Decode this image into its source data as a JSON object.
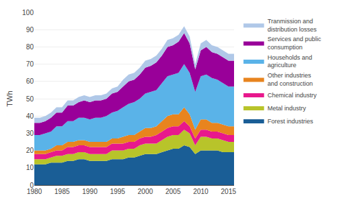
{
  "chart_data": {
    "type": "area",
    "stacked": true,
    "ylabel": "TWh",
    "x": [
      1980,
      1981,
      1982,
      1983,
      1984,
      1985,
      1986,
      1987,
      1988,
      1989,
      1990,
      1991,
      1992,
      1993,
      1994,
      1995,
      1996,
      1997,
      1998,
      1999,
      2000,
      2001,
      2002,
      2003,
      2004,
      2005,
      2006,
      2007,
      2008,
      2009,
      2010,
      2011,
      2012,
      2013,
      2014,
      2015,
      2016
    ],
    "series": [
      {
        "name": "Forest industries",
        "color": "#1a5e96",
        "values": [
          12,
          12,
          12,
          13,
          13,
          13,
          14,
          14,
          15,
          15,
          14,
          14,
          14,
          14,
          15,
          15,
          15,
          16,
          16,
          17,
          18,
          18,
          18,
          19,
          20,
          21,
          21,
          23,
          22,
          18,
          20,
          20,
          20,
          20,
          19,
          19,
          19
        ]
      },
      {
        "name": "Metal industry",
        "color": "#b8c42a",
        "values": [
          3,
          3,
          3,
          3,
          4,
          4,
          4,
          4,
          4,
          4,
          4,
          4,
          4,
          4,
          5,
          5,
          5,
          5,
          5,
          6,
          6,
          6,
          6,
          7,
          8,
          8,
          8,
          9,
          8,
          5,
          8,
          8,
          7,
          7,
          7,
          6,
          6
        ]
      },
      {
        "name": "Chemical industry",
        "color": "#e8188c",
        "values": [
          3,
          3,
          3,
          3,
          3,
          3,
          4,
          4,
          4,
          4,
          4,
          4,
          4,
          4,
          4,
          4,
          4,
          4,
          4,
          4,
          4,
          4,
          5,
          5,
          5,
          5,
          5,
          5,
          4,
          4,
          4,
          4,
          4,
          4,
          4,
          4,
          4
        ]
      },
      {
        "name": "Other industries\nand construction",
        "color": "#e8841e",
        "values": [
          2,
          2,
          2,
          2,
          3,
          3,
          3,
          3,
          3,
          3,
          3,
          3,
          3,
          3,
          3,
          3,
          4,
          4,
          4,
          4,
          5,
          5,
          5,
          6,
          7,
          7,
          7,
          8,
          7,
          5,
          6,
          6,
          5,
          5,
          5,
          5,
          5
        ]
      },
      {
        "name": "Households and\nagriculture",
        "color": "#5ab3e8",
        "values": [
          9,
          9,
          10,
          10,
          11,
          11,
          12,
          12,
          13,
          13,
          13,
          14,
          14,
          15,
          15,
          16,
          17,
          18,
          19,
          19,
          20,
          21,
          21,
          22,
          23,
          23,
          24,
          25,
          24,
          22,
          25,
          26,
          26,
          25,
          24,
          23,
          23
        ]
      },
      {
        "name": "Services and public\nconsumption",
        "color": "#990099",
        "values": [
          7,
          7,
          7,
          8,
          8,
          8,
          9,
          9,
          9,
          10,
          10,
          10,
          10,
          10,
          11,
          11,
          12,
          13,
          13,
          14,
          15,
          15,
          16,
          16,
          17,
          17,
          18,
          18,
          17,
          13,
          15,
          16,
          15,
          15,
          15,
          15,
          15
        ]
      },
      {
        "name": "Tranmission and\ndistribution losses",
        "color": "#b0c8e8",
        "values": [
          3,
          3,
          3,
          3,
          3,
          3,
          3,
          3,
          3,
          3,
          3,
          3,
          3,
          3,
          3,
          3,
          4,
          4,
          4,
          4,
          4,
          4,
          4,
          4,
          4,
          4,
          4,
          4,
          4,
          3,
          4,
          4,
          4,
          4,
          4,
          4,
          4
        ]
      }
    ],
    "xlim": [
      1980,
      2016
    ],
    "xticks": [
      1980,
      1985,
      1990,
      1995,
      2000,
      2005,
      2010,
      2015
    ],
    "ylim": [
      0,
      100
    ],
    "yticks": [
      0,
      10,
      20,
      30,
      40,
      50,
      60,
      70,
      80,
      90,
      100
    ],
    "grid": "y",
    "legend": "right"
  }
}
